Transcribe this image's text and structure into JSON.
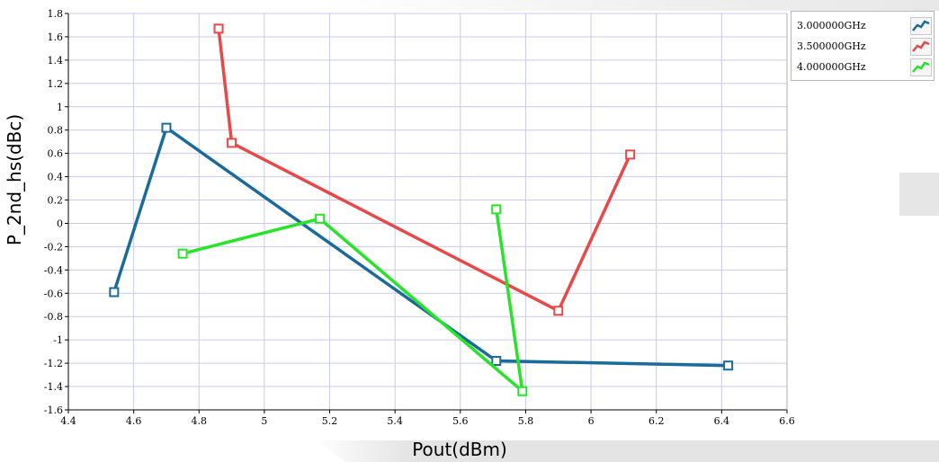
{
  "chart_data": {
    "type": "line",
    "xlabel": "Pout(dBm)",
    "ylabel": "P_2nd_hs(dBc)",
    "xlim": [
      4.4,
      6.6
    ],
    "ylim": [
      -1.6,
      1.8
    ],
    "x_ticks": [
      "4.4",
      "4.6",
      "4.8",
      "5",
      "5.2",
      "5.4",
      "5.6",
      "5.8",
      "6",
      "6.2",
      "6.4",
      "6.6"
    ],
    "y_ticks": [
      "1.8",
      "1.6",
      "1.4",
      "1.2",
      "1",
      "0.8",
      "0.6",
      "0.4",
      "0.2",
      "0",
      "-0.2",
      "-0.4",
      "-0.6",
      "-0.8",
      "-1",
      "-1.2",
      "-1.4",
      "-1.6"
    ],
    "grid": true,
    "legend_position": "right",
    "marker": "square",
    "series": [
      {
        "name": "3.000000GHz",
        "color": "#1a6a9a",
        "points": [
          [
            4.54,
            -0.59
          ],
          [
            4.7,
            0.82
          ],
          [
            5.71,
            -1.18
          ],
          [
            6.42,
            -1.22
          ]
        ]
      },
      {
        "name": "3.500000GHz",
        "color": "#e84848",
        "points": [
          [
            4.86,
            1.67
          ],
          [
            4.9,
            0.69
          ],
          [
            5.9,
            -0.75
          ],
          [
            6.12,
            0.59
          ]
        ]
      },
      {
        "name": "4.000000GHz",
        "color": "#28e428",
        "points": [
          [
            4.75,
            -0.26
          ],
          [
            5.17,
            0.04
          ],
          [
            5.79,
            -1.44
          ],
          [
            5.71,
            0.12
          ]
        ]
      }
    ]
  }
}
